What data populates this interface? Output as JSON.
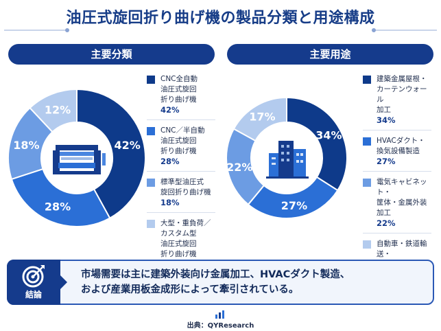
{
  "title": "油圧式旋回折り曲げ機の製品分類と用途構成",
  "colors": {
    "navy": "#153b8c",
    "c1": "#0e3a8a",
    "c2": "#2b6fd6",
    "c3": "#6c9ce3",
    "c4": "#b3cbee"
  },
  "chart_data": [
    {
      "type": "pie",
      "title": "主要分類",
      "categories": [
        "CNC全自動\n油圧式旋回\n折り曲げ機",
        "CNC／半自動\n油圧式旋回\n折り曲げ機",
        "標準型油圧式\n旋回折り曲げ機",
        "大型・重負荷／\nカスタム型\n油圧式旋回\n折り曲げ機"
      ],
      "values": [
        42,
        28,
        18,
        12
      ],
      "labels": [
        "42%",
        "28%",
        "18%",
        "12%"
      ],
      "colors": [
        "#0e3a8a",
        "#2b6fd6",
        "#6c9ce3",
        "#b3cbee"
      ],
      "center_icon": "bending-machine-icon"
    },
    {
      "type": "pie",
      "title": "主要用途",
      "categories": [
        "建築金属屋根・\nカーテンウォール\n加工",
        "HVACダクト・\n換気設備製造",
        "電気キャビネット・\n筐体・金属外装\n加工",
        "自動車・鉄道輸送・\n産業用板金部品"
      ],
      "values": [
        34,
        27,
        22,
        17
      ],
      "labels": [
        "34%",
        "27%",
        "22%",
        "17%"
      ],
      "colors": [
        "#0e3a8a",
        "#2b6fd6",
        "#6c9ce3",
        "#b3cbee"
      ],
      "center_icon": "buildings-icon"
    }
  ],
  "conclusion": {
    "label": "結論",
    "icon": "target-icon",
    "text": "市場需要は主に建築外装向け金属加工、HVACダクト製造、\nおよび産業用板金成形によって牽引されている。"
  },
  "source": {
    "icon": "bar-chart-icon",
    "text": "出典：QYResearch"
  }
}
